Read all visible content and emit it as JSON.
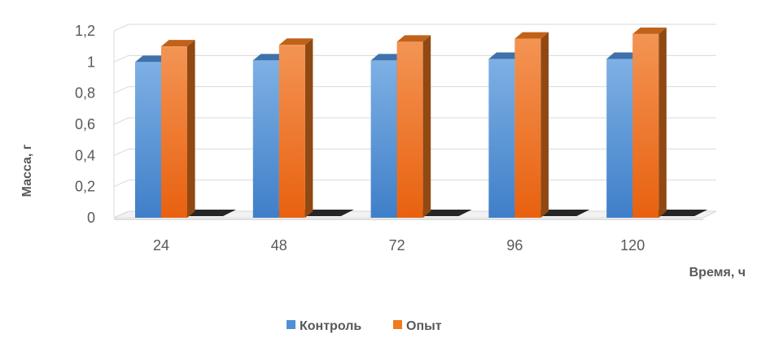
{
  "chart_data": {
    "type": "bar",
    "title": "",
    "xlabel": "Время, ч",
    "ylabel": "Масса, г",
    "categories": [
      "24",
      "48",
      "72",
      "96",
      "120"
    ],
    "series": [
      {
        "name": "Контроль",
        "values": [
          1.0,
          1.01,
          1.01,
          1.02,
          1.02
        ],
        "color": "#4F8FD6"
      },
      {
        "name": "Опыт",
        "values": [
          1.1,
          1.11,
          1.13,
          1.15,
          1.18
        ],
        "color": "#F07A1E"
      }
    ],
    "ylim": [
      0,
      1.2
    ],
    "yticks": [
      "0",
      "0,2",
      "0,4",
      "0,6",
      "0,8",
      "1",
      "1,2"
    ],
    "grid": true,
    "legend": "bottom",
    "style": "3d-column"
  }
}
